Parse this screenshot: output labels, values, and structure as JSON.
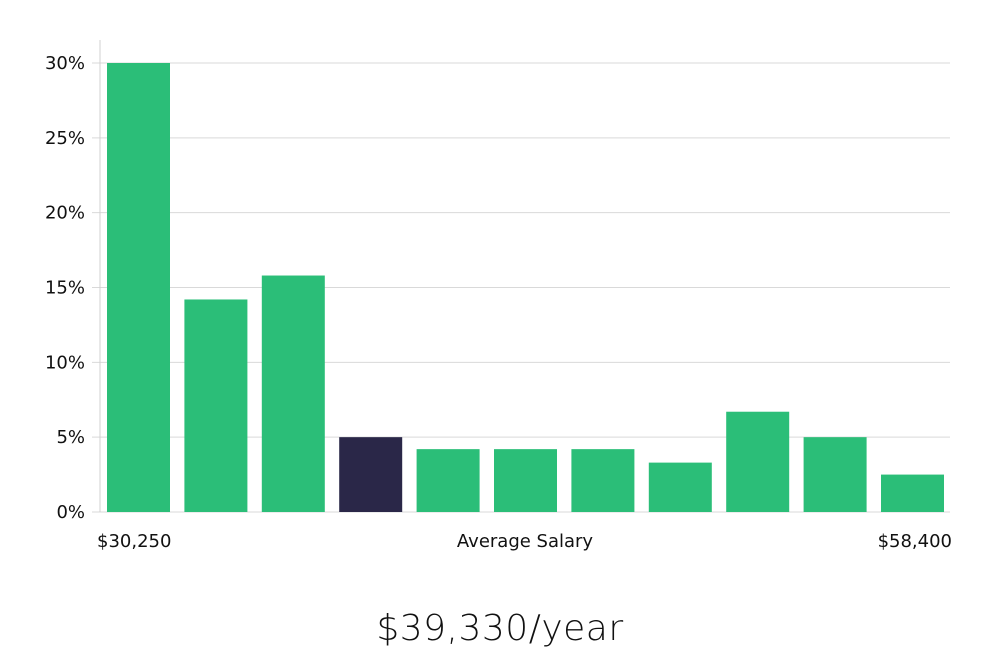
{
  "colors": {
    "bar": "#2bbe78",
    "highlight": "#2a2748",
    "grid": "#d9d9d9",
    "axis": "#d0d0d0",
    "text": "#111111"
  },
  "chart_data": {
    "type": "bar",
    "categories": [
      "1",
      "2",
      "3",
      "4",
      "5",
      "6",
      "7",
      "8",
      "9",
      "10",
      "11"
    ],
    "values": [
      30,
      14.2,
      15.8,
      5.0,
      4.2,
      4.2,
      4.2,
      3.3,
      6.7,
      5.0,
      2.5
    ],
    "highlight_index": 3,
    "ylim": [
      0,
      30
    ],
    "yticks": [
      0,
      5,
      10,
      15,
      20,
      25,
      30
    ],
    "ytick_labels": [
      "0%",
      "5%",
      "10%",
      "15%",
      "20%",
      "25%",
      "30%"
    ],
    "grid": true,
    "x_min_label": "$30,250",
    "x_center_label": "Average Salary",
    "x_max_label": "$58,400"
  },
  "average_salary": "$39,330/year"
}
